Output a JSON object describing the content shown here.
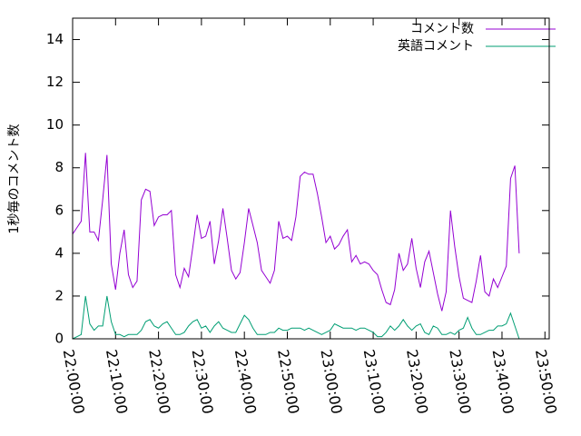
{
  "chart_data": {
    "type": "line",
    "ylabel": "1秒毎のコメント数",
    "x": [
      "22:00:00",
      "22:01:00",
      "22:02:00",
      "22:03:00",
      "22:04:00",
      "22:05:00",
      "22:06:00",
      "22:07:00",
      "22:08:00",
      "22:09:00",
      "22:10:00",
      "22:11:00",
      "22:12:00",
      "22:13:00",
      "22:14:00",
      "22:15:00",
      "22:16:00",
      "22:17:00",
      "22:18:00",
      "22:19:00",
      "22:20:00",
      "22:21:00",
      "22:22:00",
      "22:23:00",
      "22:24:00",
      "22:25:00",
      "22:26:00",
      "22:27:00",
      "22:28:00",
      "22:29:00",
      "22:30:00",
      "22:31:00",
      "22:32:00",
      "22:33:00",
      "22:34:00",
      "22:35:00",
      "22:36:00",
      "22:37:00",
      "22:38:00",
      "22:39:00",
      "22:40:00",
      "22:41:00",
      "22:42:00",
      "22:43:00",
      "22:44:00",
      "22:45:00",
      "22:46:00",
      "22:47:00",
      "22:48:00",
      "22:49:00",
      "22:50:00",
      "22:51:00",
      "22:52:00",
      "22:53:00",
      "22:54:00",
      "22:55:00",
      "22:56:00",
      "22:57:00",
      "22:58:00",
      "22:59:00",
      "23:00:00",
      "23:01:00",
      "23:02:00",
      "23:03:00",
      "23:04:00",
      "23:05:00",
      "23:06:00",
      "23:07:00",
      "23:08:00",
      "23:09:00",
      "23:10:00",
      "23:11:00",
      "23:12:00",
      "23:13:00",
      "23:14:00",
      "23:15:00",
      "23:16:00",
      "23:17:00",
      "23:18:00",
      "23:19:00",
      "23:20:00",
      "23:21:00",
      "23:22:00",
      "23:23:00",
      "23:24:00",
      "23:25:00",
      "23:26:00",
      "23:27:00",
      "23:28:00",
      "23:29:00",
      "23:30:00",
      "23:31:00",
      "23:32:00",
      "23:33:00",
      "23:34:00",
      "23:35:00",
      "23:36:00",
      "23:37:00",
      "23:38:00",
      "23:39:00",
      "23:40:00",
      "23:41:00",
      "23:42:00",
      "23:43:00",
      "23:44:00"
    ],
    "series": [
      {
        "name": "コメント数",
        "color": "#9400d3",
        "values": [
          4.9,
          5.2,
          5.5,
          8.7,
          5.0,
          5.0,
          4.6,
          6.5,
          8.6,
          3.5,
          2.3,
          4.0,
          5.1,
          3.0,
          2.4,
          2.7,
          6.5,
          7.0,
          6.9,
          5.3,
          5.7,
          5.8,
          5.8,
          6.0,
          3.0,
          2.4,
          3.3,
          2.9,
          4.3,
          5.8,
          4.7,
          4.8,
          5.5,
          3.5,
          4.6,
          6.1,
          4.7,
          3.2,
          2.8,
          3.1,
          4.5,
          6.1,
          5.3,
          4.5,
          3.2,
          2.9,
          2.6,
          3.2,
          5.5,
          4.7,
          4.8,
          4.6,
          5.7,
          7.6,
          7.8,
          7.7,
          7.7,
          6.8,
          5.7,
          4.5,
          4.8,
          4.2,
          4.4,
          4.8,
          5.1,
          3.6,
          3.9,
          3.5,
          3.6,
          3.5,
          3.2,
          3.0,
          2.3,
          1.7,
          1.6,
          2.3,
          4.0,
          3.2,
          3.5,
          4.7,
          3.3,
          2.4,
          3.6,
          4.1,
          3.1,
          2.1,
          1.3,
          2.2,
          6.0,
          4.3,
          2.9,
          1.9,
          1.8,
          1.7,
          2.7,
          3.9,
          2.2,
          2.0,
          2.8,
          2.4,
          2.9,
          3.4,
          7.5,
          8.1,
          4.0
        ]
      },
      {
        "name": "英語コメント",
        "color": "#009e73",
        "values": [
          0.0,
          0.1,
          0.2,
          2.0,
          0.7,
          0.4,
          0.6,
          0.6,
          2.0,
          0.8,
          0.2,
          0.2,
          0.1,
          0.2,
          0.2,
          0.2,
          0.4,
          0.8,
          0.9,
          0.6,
          0.5,
          0.7,
          0.8,
          0.5,
          0.2,
          0.2,
          0.3,
          0.6,
          0.8,
          0.9,
          0.5,
          0.6,
          0.3,
          0.6,
          0.8,
          0.5,
          0.4,
          0.3,
          0.3,
          0.7,
          1.1,
          0.9,
          0.5,
          0.2,
          0.2,
          0.2,
          0.3,
          0.3,
          0.5,
          0.4,
          0.4,
          0.5,
          0.5,
          0.5,
          0.4,
          0.5,
          0.4,
          0.3,
          0.2,
          0.3,
          0.4,
          0.7,
          0.6,
          0.5,
          0.5,
          0.5,
          0.4,
          0.5,
          0.5,
          0.4,
          0.3,
          0.1,
          0.1,
          0.3,
          0.6,
          0.4,
          0.6,
          0.9,
          0.6,
          0.4,
          0.6,
          0.7,
          0.3,
          0.2,
          0.6,
          0.5,
          0.2,
          0.2,
          0.3,
          0.2,
          0.4,
          0.5,
          1.0,
          0.5,
          0.2,
          0.2,
          0.3,
          0.4,
          0.4,
          0.6,
          0.6,
          0.7,
          1.2,
          0.6,
          0.0
        ]
      }
    ],
    "xlim": [
      "22:00:00",
      "23:51:00"
    ],
    "xticks": [
      "22:00:00",
      "22:10:00",
      "22:20:00",
      "22:30:00",
      "22:40:00",
      "22:50:00",
      "23:00:00",
      "23:10:00",
      "23:20:00",
      "23:30:00",
      "23:40:00",
      "23:50:00"
    ],
    "ylim": [
      0,
      15
    ],
    "yticks": [
      0,
      2,
      4,
      6,
      8,
      10,
      12,
      14
    ],
    "legend": "top-right"
  }
}
